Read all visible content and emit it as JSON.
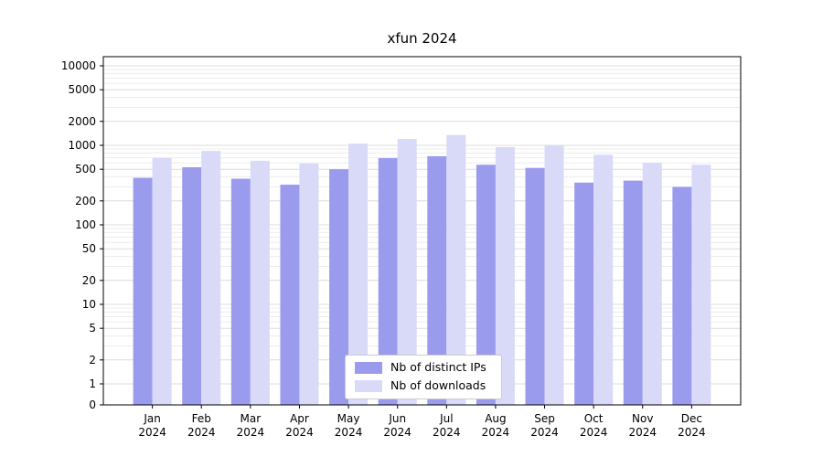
{
  "title": "xfun 2024",
  "chart_data": {
    "type": "bar",
    "scale": "symlog",
    "title": "xfun 2024",
    "xlabel": "",
    "ylabel": "",
    "ylim": [
      0,
      10000
    ],
    "grid": true,
    "legend_position": "lower center",
    "year_label": "2024",
    "categories": [
      "Jan",
      "Feb",
      "Mar",
      "Apr",
      "May",
      "Jun",
      "Jul",
      "Aug",
      "Sep",
      "Oct",
      "Nov",
      "Dec"
    ],
    "yticks": [
      10000,
      5000,
      2000,
      1000,
      500,
      200,
      100,
      50,
      20,
      10,
      5,
      2,
      1,
      0
    ],
    "series": [
      {
        "name": "Nb of distinct IPs",
        "color": "#9b9bee",
        "values": [
          390,
          530,
          380,
          320,
          500,
          690,
          730,
          570,
          520,
          340,
          360,
          300
        ]
      },
      {
        "name": "Nb of downloads",
        "color": "#d9d9f8",
        "values": [
          690,
          850,
          640,
          590,
          1050,
          1200,
          1350,
          950,
          1000,
          760,
          600,
          570
        ]
      }
    ]
  }
}
